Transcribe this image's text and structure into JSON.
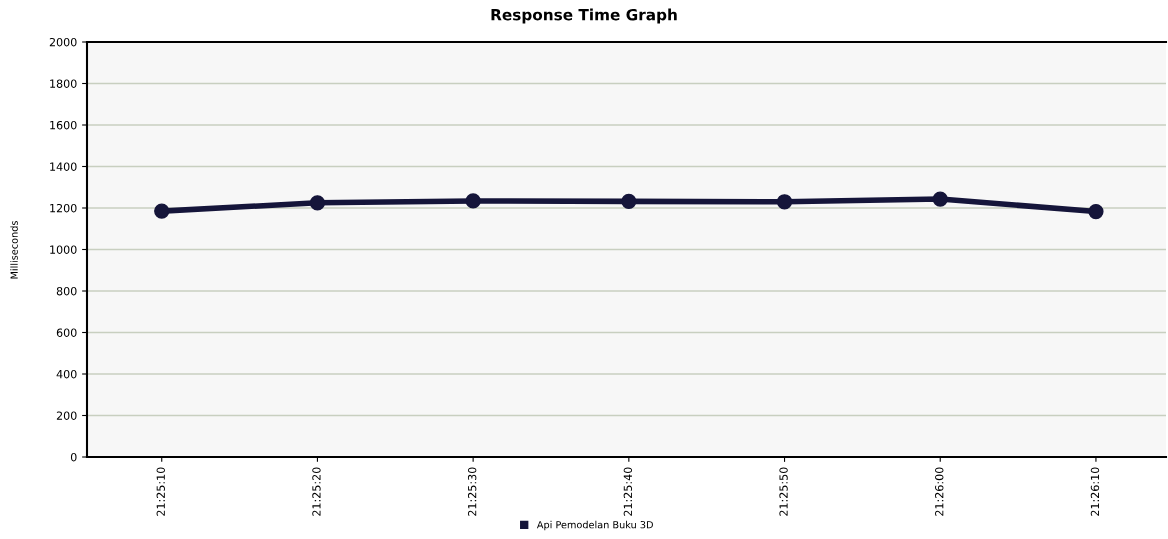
{
  "chart_data": {
    "type": "line",
    "title": "Response Time Graph",
    "ylabel": "Milliseconds",
    "categories": [
      "21:25:10",
      "21:25:20",
      "21:25:30",
      "21:25:40",
      "21:25:50",
      "21:26:00",
      "21:26:10"
    ],
    "series": [
      {
        "name": "Api Pemodelan Buku 3D",
        "color": "#15153a",
        "values": [
          1185,
          1225,
          1234,
          1232,
          1230,
          1243,
          1183
        ]
      }
    ],
    "ylim": [
      0,
      2000
    ],
    "yticks": [
      0,
      200,
      400,
      600,
      800,
      1000,
      1200,
      1400,
      1600,
      1800,
      2000
    ],
    "grid": "y",
    "legend": "bottom",
    "marker": "circle",
    "line_style": "solid"
  }
}
